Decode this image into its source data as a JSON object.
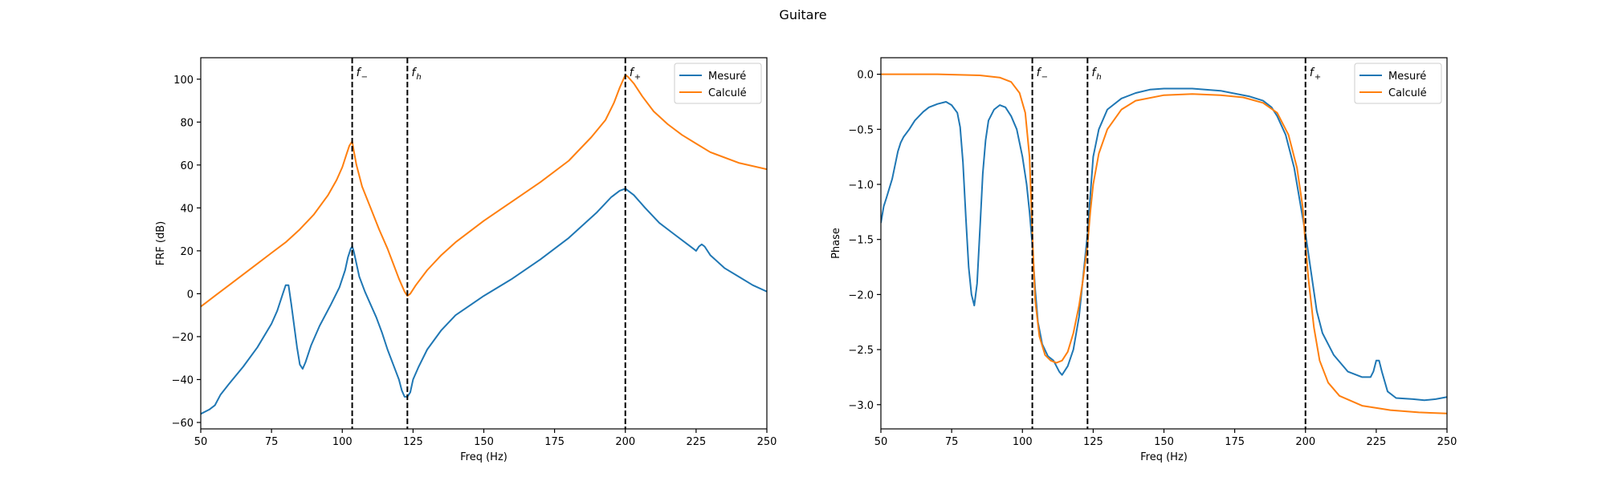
{
  "figure_title": "Guitare",
  "colors": {
    "measured": "#1f77b4",
    "computed": "#ff7f0e",
    "marker": "#000000"
  },
  "chart_data": [
    {
      "type": "line",
      "xlabel": "Freq (Hz)",
      "ylabel": "FRF (dB)",
      "xlim": [
        50,
        250
      ],
      "ylim": [
        -63,
        110
      ],
      "xticks": [
        50,
        75,
        100,
        125,
        150,
        175,
        200,
        225,
        250
      ],
      "yticks": [
        -60,
        -40,
        -20,
        0,
        20,
        40,
        60,
        80,
        100
      ],
      "grid": false,
      "legend_position": "top-right",
      "vlines": [
        {
          "x": 103.5,
          "label": "f",
          "sub": "−"
        },
        {
          "x": 123,
          "label": "f",
          "sub": "h"
        },
        {
          "x": 200,
          "label": "f",
          "sub": "+"
        }
      ],
      "series": [
        {
          "name": "Mesuré",
          "color": "#1f77b4",
          "points": [
            [
              50,
              -56
            ],
            [
              53,
              -54
            ],
            [
              55,
              -52
            ],
            [
              57,
              -47
            ],
            [
              60,
              -42
            ],
            [
              65,
              -34
            ],
            [
              70,
              -25
            ],
            [
              75,
              -14
            ],
            [
              77,
              -8
            ],
            [
              79,
              0
            ],
            [
              80,
              4
            ],
            [
              81,
              4
            ],
            [
              82,
              -5
            ],
            [
              84,
              -25
            ],
            [
              85,
              -33
            ],
            [
              86,
              -35
            ],
            [
              87,
              -32
            ],
            [
              89,
              -24
            ],
            [
              92,
              -15
            ],
            [
              96,
              -5
            ],
            [
              99,
              3
            ],
            [
              101,
              11
            ],
            [
              102,
              17
            ],
            [
              103,
              21
            ],
            [
              103.5,
              22
            ],
            [
              104,
              20
            ],
            [
              105,
              14
            ],
            [
              106,
              8
            ],
            [
              108,
              1
            ],
            [
              110,
              -5
            ],
            [
              112,
              -11
            ],
            [
              114,
              -18
            ],
            [
              116,
              -26
            ],
            [
              118,
              -33
            ],
            [
              120,
              -40
            ],
            [
              121,
              -45
            ],
            [
              122,
              -48
            ],
            [
              123,
              -48
            ],
            [
              124,
              -46
            ],
            [
              125,
              -40
            ],
            [
              127,
              -34
            ],
            [
              130,
              -26
            ],
            [
              135,
              -17
            ],
            [
              140,
              -10
            ],
            [
              150,
              -1
            ],
            [
              160,
              7
            ],
            [
              170,
              16
            ],
            [
              180,
              26
            ],
            [
              190,
              38
            ],
            [
              195,
              45
            ],
            [
              198,
              48
            ],
            [
              200,
              49
            ],
            [
              203,
              46
            ],
            [
              207,
              40
            ],
            [
              212,
              33
            ],
            [
              217,
              28
            ],
            [
              222,
              23
            ],
            [
              224,
              21
            ],
            [
              225,
              20
            ],
            [
              226,
              22
            ],
            [
              227,
              23
            ],
            [
              228,
              22
            ],
            [
              230,
              18
            ],
            [
              235,
              12
            ],
            [
              240,
              8
            ],
            [
              245,
              4
            ],
            [
              250,
              1
            ]
          ]
        },
        {
          "name": "Calculé",
          "color": "#ff7f0e",
          "points": [
            [
              50,
              -6
            ],
            [
              55,
              -1
            ],
            [
              60,
              4
            ],
            [
              65,
              9
            ],
            [
              70,
              14
            ],
            [
              75,
              19
            ],
            [
              80,
              24
            ],
            [
              85,
              30
            ],
            [
              90,
              37
            ],
            [
              95,
              46
            ],
            [
              98,
              53
            ],
            [
              100,
              59
            ],
            [
              101.5,
              65
            ],
            [
              102.5,
              69
            ],
            [
              103.5,
              71
            ],
            [
              104,
              67
            ],
            [
              105,
              60
            ],
            [
              107,
              50
            ],
            [
              110,
              40
            ],
            [
              113,
              30
            ],
            [
              116,
              21
            ],
            [
              118,
              14
            ],
            [
              120,
              7
            ],
            [
              121,
              4
            ],
            [
              122,
              1
            ],
            [
              123,
              -1
            ],
            [
              124,
              0
            ],
            [
              126,
              4
            ],
            [
              130,
              11
            ],
            [
              135,
              18
            ],
            [
              140,
              24
            ],
            [
              150,
              34
            ],
            [
              160,
              43
            ],
            [
              170,
              52
            ],
            [
              180,
              62
            ],
            [
              188,
              73
            ],
            [
              193,
              81
            ],
            [
              196,
              89
            ],
            [
              198,
              96
            ],
            [
              200,
              102
            ],
            [
              201,
              101
            ],
            [
              203,
              98
            ],
            [
              206,
              92
            ],
            [
              210,
              85
            ],
            [
              215,
              79
            ],
            [
              220,
              74
            ],
            [
              225,
              70
            ],
            [
              230,
              66
            ],
            [
              240,
              61
            ],
            [
              250,
              58
            ]
          ]
        }
      ]
    },
    {
      "type": "line",
      "xlabel": "Freq (Hz)",
      "ylabel": "Phase",
      "xlim": [
        50,
        250
      ],
      "ylim": [
        -3.22,
        0.15
      ],
      "xticks": [
        50,
        75,
        100,
        125,
        150,
        175,
        200,
        225,
        250
      ],
      "yticks": [
        0.0,
        -0.5,
        -1.0,
        -1.5,
        -2.0,
        -2.5,
        -3.0
      ],
      "yticklabels": [
        "0.0",
        "−0.5",
        "−1.0",
        "−1.5",
        "−2.0",
        "−2.5",
        "−3.0"
      ],
      "grid": false,
      "legend_position": "top-right",
      "vlines": [
        {
          "x": 103.5,
          "label": "f",
          "sub": "−"
        },
        {
          "x": 123,
          "label": "f",
          "sub": "h"
        },
        {
          "x": 200,
          "label": "f",
          "sub": "+"
        }
      ],
      "series": [
        {
          "name": "Mesuré",
          "color": "#1f77b4",
          "points": [
            [
              50,
              -1.35
            ],
            [
              51,
              -1.2
            ],
            [
              52,
              -1.12
            ],
            [
              54,
              -0.95
            ],
            [
              56,
              -0.7
            ],
            [
              57,
              -0.62
            ],
            [
              58,
              -0.57
            ],
            [
              60,
              -0.5
            ],
            [
              62,
              -0.42
            ],
            [
              65,
              -0.34
            ],
            [
              67,
              -0.3
            ],
            [
              70,
              -0.27
            ],
            [
              73,
              -0.25
            ],
            [
              75,
              -0.28
            ],
            [
              77,
              -0.35
            ],
            [
              78,
              -0.48
            ],
            [
              79,
              -0.8
            ],
            [
              80,
              -1.3
            ],
            [
              81,
              -1.75
            ],
            [
              82,
              -2.0
            ],
            [
              83,
              -2.1
            ],
            [
              84,
              -1.9
            ],
            [
              85,
              -1.4
            ],
            [
              86,
              -0.9
            ],
            [
              87,
              -0.6
            ],
            [
              88,
              -0.42
            ],
            [
              90,
              -0.32
            ],
            [
              92,
              -0.28
            ],
            [
              94,
              -0.3
            ],
            [
              96,
              -0.38
            ],
            [
              98,
              -0.5
            ],
            [
              100,
              -0.75
            ],
            [
              101.5,
              -1.0
            ],
            [
              102.5,
              -1.25
            ],
            [
              103.5,
              -1.55
            ],
            [
              104.5,
              -1.95
            ],
            [
              105.5,
              -2.25
            ],
            [
              107,
              -2.45
            ],
            [
              109,
              -2.56
            ],
            [
              111,
              -2.6
            ],
            [
              113,
              -2.7
            ],
            [
              114,
              -2.73
            ],
            [
              116,
              -2.65
            ],
            [
              118,
              -2.5
            ],
            [
              120,
              -2.2
            ],
            [
              121,
              -1.95
            ],
            [
              122,
              -1.7
            ],
            [
              123,
              -1.45
            ],
            [
              124,
              -1.1
            ],
            [
              125,
              -0.75
            ],
            [
              127,
              -0.5
            ],
            [
              130,
              -0.32
            ],
            [
              135,
              -0.22
            ],
            [
              140,
              -0.17
            ],
            [
              145,
              -0.14
            ],
            [
              150,
              -0.13
            ],
            [
              160,
              -0.13
            ],
            [
              170,
              -0.15
            ],
            [
              180,
              -0.2
            ],
            [
              185,
              -0.24
            ],
            [
              188,
              -0.3
            ],
            [
              190,
              -0.38
            ],
            [
              193,
              -0.55
            ],
            [
              196,
              -0.85
            ],
            [
              198,
              -1.15
            ],
            [
              200,
              -1.45
            ],
            [
              202,
              -1.8
            ],
            [
              204,
              -2.15
            ],
            [
              206,
              -2.35
            ],
            [
              210,
              -2.55
            ],
            [
              215,
              -2.7
            ],
            [
              220,
              -2.75
            ],
            [
              223,
              -2.75
            ],
            [
              224,
              -2.7
            ],
            [
              225,
              -2.6
            ],
            [
              226,
              -2.6
            ],
            [
              227,
              -2.7
            ],
            [
              229,
              -2.88
            ],
            [
              232,
              -2.94
            ],
            [
              238,
              -2.95
            ],
            [
              242,
              -2.96
            ],
            [
              246,
              -2.95
            ],
            [
              250,
              -2.93
            ]
          ]
        },
        {
          "name": "Calculé",
          "color": "#ff7f0e",
          "points": [
            [
              50,
              0.0
            ],
            [
              70,
              0.0
            ],
            [
              85,
              -0.01
            ],
            [
              92,
              -0.03
            ],
            [
              96,
              -0.07
            ],
            [
              99,
              -0.17
            ],
            [
              101,
              -0.35
            ],
            [
              102.5,
              -0.75
            ],
            [
              103.5,
              -1.45
            ],
            [
              104.5,
              -2.05
            ],
            [
              106,
              -2.38
            ],
            [
              108,
              -2.55
            ],
            [
              110,
              -2.6
            ],
            [
              112,
              -2.62
            ],
            [
              114,
              -2.6
            ],
            [
              116,
              -2.52
            ],
            [
              118,
              -2.35
            ],
            [
              120,
              -2.1
            ],
            [
              121.5,
              -1.85
            ],
            [
              123,
              -1.55
            ],
            [
              124,
              -1.25
            ],
            [
              125,
              -1.0
            ],
            [
              127,
              -0.72
            ],
            [
              130,
              -0.5
            ],
            [
              135,
              -0.32
            ],
            [
              140,
              -0.24
            ],
            [
              150,
              -0.19
            ],
            [
              160,
              -0.18
            ],
            [
              170,
              -0.19
            ],
            [
              178,
              -0.21
            ],
            [
              185,
              -0.26
            ],
            [
              190,
              -0.35
            ],
            [
              194,
              -0.55
            ],
            [
              197,
              -0.85
            ],
            [
              199,
              -1.2
            ],
            [
              200,
              -1.55
            ],
            [
              201,
              -1.85
            ],
            [
              203,
              -2.3
            ],
            [
              205,
              -2.6
            ],
            [
              208,
              -2.8
            ],
            [
              212,
              -2.92
            ],
            [
              220,
              -3.01
            ],
            [
              230,
              -3.05
            ],
            [
              240,
              -3.07
            ],
            [
              250,
              -3.08
            ]
          ]
        }
      ]
    }
  ]
}
